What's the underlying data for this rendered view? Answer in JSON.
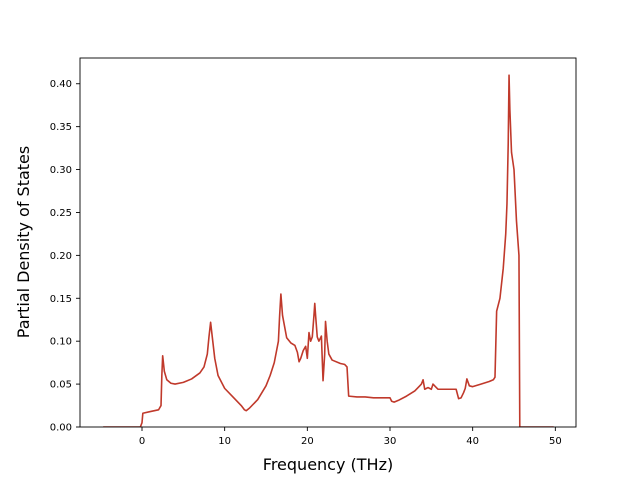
{
  "chart_data": {
    "type": "line",
    "title": "",
    "xlabel": "Frequency (THz)",
    "ylabel": "Partial Density of States",
    "xlim": [
      -7.5,
      52.5
    ],
    "ylim": [
      0.0,
      0.43
    ],
    "grid": false,
    "legend": "none",
    "x_ticks": [
      0,
      10,
      20,
      30,
      40,
      50
    ],
    "x_tick_labels": [
      "0",
      "10",
      "20",
      "30",
      "40",
      "50"
    ],
    "y_ticks": [
      0.0,
      0.05,
      0.1,
      0.15,
      0.2,
      0.25,
      0.3,
      0.35,
      0.4
    ],
    "y_tick_labels": [
      "0.00",
      "0.05",
      "0.10",
      "0.15",
      "0.20",
      "0.25",
      "0.30",
      "0.35",
      "0.40"
    ],
    "series": [
      {
        "color": "#c0392b",
        "x": [
          -4.7,
          -0.2,
          0.0,
          0.1,
          1.0,
          2.0,
          2.3,
          2.4,
          2.5,
          2.7,
          3.0,
          3.5,
          4.0,
          5.0,
          6.0,
          7.0,
          7.5,
          7.9,
          8.1,
          8.3,
          8.5,
          8.8,
          9.2,
          10.0,
          11.0,
          12.0,
          12.4,
          12.6,
          13.0,
          14.0,
          15.0,
          15.5,
          16.0,
          16.3,
          16.5,
          16.65,
          16.8,
          17.0,
          17.5,
          18.0,
          18.5,
          18.8,
          19.0,
          19.2,
          19.5,
          19.8,
          20.0,
          20.2,
          20.4,
          20.6,
          20.8,
          20.9,
          21.0,
          21.2,
          21.4,
          21.7,
          21.9,
          22.1,
          22.2,
          22.4,
          22.6,
          23.0,
          24.0,
          24.5,
          24.8,
          25.0,
          26.0,
          27.0,
          28.0,
          29.0,
          30.0,
          30.2,
          30.5,
          31.0,
          32.0,
          33.0,
          33.5,
          33.8,
          34.0,
          34.2,
          34.6,
          35.0,
          35.2,
          35.5,
          35.8,
          36.0,
          37.0,
          37.5,
          38.0,
          38.3,
          38.6,
          38.9,
          39.1,
          39.3,
          39.6,
          40.0,
          41.0,
          42.0,
          42.5,
          42.7,
          42.9,
          43.3,
          43.7,
          44.0,
          44.15,
          44.3,
          44.4,
          44.5,
          44.7,
          45.0,
          45.3,
          45.6,
          45.7,
          46.0,
          49.8
        ],
        "y": [
          0.0,
          0.0,
          0.005,
          0.016,
          0.018,
          0.02,
          0.025,
          0.06,
          0.083,
          0.065,
          0.055,
          0.051,
          0.05,
          0.052,
          0.056,
          0.063,
          0.07,
          0.085,
          0.105,
          0.122,
          0.105,
          0.08,
          0.06,
          0.045,
          0.035,
          0.025,
          0.02,
          0.019,
          0.022,
          0.032,
          0.048,
          0.06,
          0.075,
          0.09,
          0.1,
          0.13,
          0.155,
          0.13,
          0.104,
          0.098,
          0.095,
          0.087,
          0.076,
          0.08,
          0.089,
          0.094,
          0.08,
          0.11,
          0.1,
          0.105,
          0.13,
          0.144,
          0.13,
          0.105,
          0.1,
          0.106,
          0.054,
          0.085,
          0.123,
          0.1,
          0.085,
          0.078,
          0.074,
          0.073,
          0.07,
          0.036,
          0.035,
          0.035,
          0.034,
          0.034,
          0.034,
          0.03,
          0.029,
          0.031,
          0.036,
          0.042,
          0.047,
          0.05,
          0.055,
          0.044,
          0.046,
          0.044,
          0.05,
          0.047,
          0.044,
          0.044,
          0.044,
          0.044,
          0.044,
          0.033,
          0.034,
          0.04,
          0.045,
          0.056,
          0.048,
          0.047,
          0.05,
          0.053,
          0.055,
          0.058,
          0.135,
          0.15,
          0.185,
          0.225,
          0.26,
          0.33,
          0.41,
          0.37,
          0.32,
          0.3,
          0.24,
          0.2,
          0.0,
          0.0,
          0.0
        ]
      }
    ]
  }
}
